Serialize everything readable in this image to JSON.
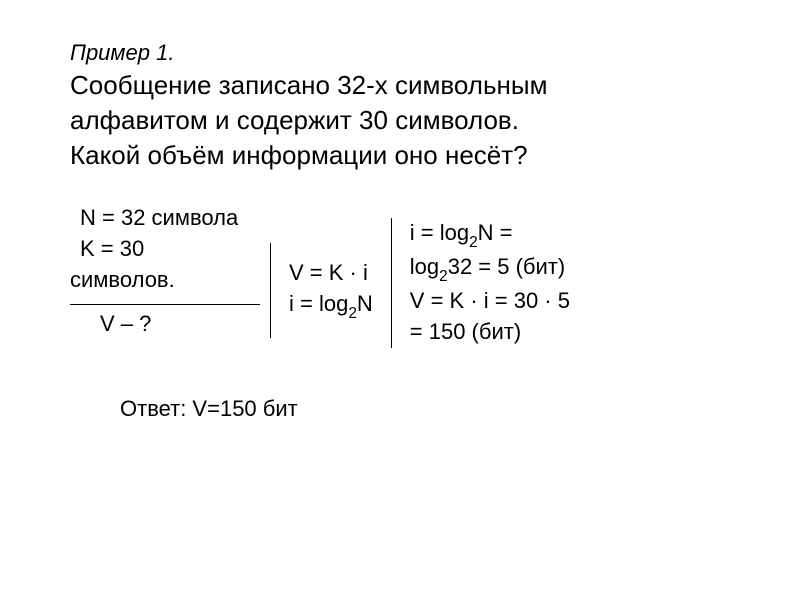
{
  "header": {
    "example_label": "Пример 1.",
    "problem_line1": "Сообщение записано 32-х символьным",
    "problem_line2": "алфавитом и содержит 30 символов.",
    "problem_line3": "Какой объём информации оно несёт?"
  },
  "given": {
    "n_line": "N = 32 символа",
    "k_line": "K = 30",
    "k_unit": "символов.",
    "find": "V – ?"
  },
  "formulas": {
    "line1": "V = K · i",
    "line2_prefix": "i = log",
    "line2_sub": "2",
    "line2_suffix": "N"
  },
  "calc": {
    "l1_prefix": "i = log",
    "l1_sub": "2",
    "l1_suffix": "N =",
    "l2_prefix": "log",
    "l2_sub": "2",
    "l2_suffix": "32 = 5 (бит)",
    "l3": "V = K · i = 30 · 5",
    "l4": "= 150 (бит)"
  },
  "answer": {
    "text": "Ответ: V=150 бит"
  },
  "colors": {
    "background": "#ffffff",
    "text": "#000000"
  },
  "fonts": {
    "body": "Arial",
    "title_size_pt": 26,
    "body_size_pt": 22
  }
}
